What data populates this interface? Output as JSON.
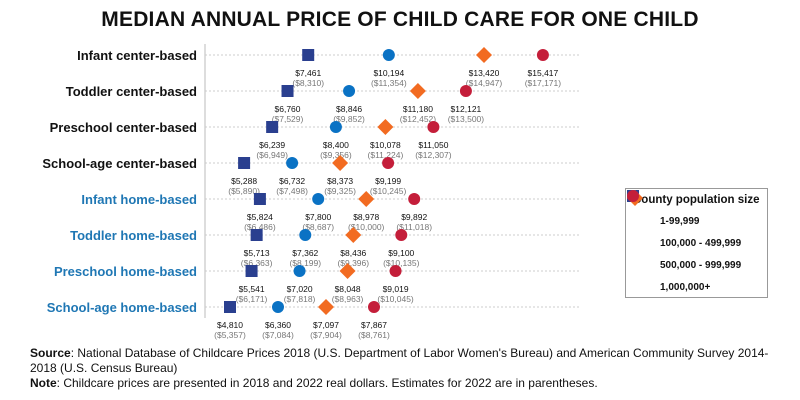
{
  "chart_data": {
    "type": "dot",
    "title": "MEDIAN ANNUAL PRICE OF CHILD CARE FOR ONE CHILD",
    "categories": [
      "Infant center-based",
      "Toddler center-based",
      "Preschool center-based",
      "School-age center-based",
      "Infant home-based",
      "Toddler home-based",
      "Preschool home-based",
      "School-age home-based"
    ],
    "category_colors": [
      "#111111",
      "#111111",
      "#111111",
      "#111111",
      "#1f77b4",
      "#1f77b4",
      "#1f77b4",
      "#1f77b4"
    ],
    "legend_title": "County population size",
    "legend_position": "right",
    "grid": true,
    "series": [
      {
        "name": "1-99,999",
        "color": "#2a3f8f",
        "marker": "square",
        "values": [
          7461,
          6760,
          6239,
          5288,
          5824,
          5713,
          5541,
          4810
        ],
        "labels": [
          "$7,461",
          "$6,760",
          "$6,239",
          "$5,288",
          "$5,824",
          "$5,713",
          "$5,541",
          "$4,810"
        ],
        "labels_2022": [
          "($8,310)",
          "($7,529)",
          "($6,949)",
          "($5,890)",
          "($6,486)",
          "($6,363)",
          "($6,171)",
          "($5,357)"
        ]
      },
      {
        "name": "100,000 - 499,999",
        "color": "#0a72c4",
        "marker": "circle",
        "values": [
          10194,
          8846,
          8400,
          6732,
          7800,
          7362,
          7020,
          6360
        ],
        "labels": [
          "$10,194",
          "$8,846",
          "$8,400",
          "$6,732",
          "$7,800",
          "$7,362",
          "$7,020",
          "$6,360"
        ],
        "labels_2022": [
          "($11,354)",
          "($9,852)",
          "($9,356)",
          "($7,498)",
          "($8,687)",
          "($8,199)",
          "($7,818)",
          "($7,084)"
        ]
      },
      {
        "name": "500,000 - 999,999",
        "color": "#f26b21",
        "marker": "diamond",
        "values": [
          13420,
          11180,
          10078,
          8373,
          8978,
          8436,
          8048,
          7097
        ],
        "labels": [
          "$13,420",
          "$11,180",
          "$10,078",
          "$8,373",
          "$8,978",
          "$8,436",
          "$8,048",
          "$7,097"
        ],
        "labels_2022": [
          "($14,947)",
          "($12,452)",
          "($11,224)",
          "($9,325)",
          "($10,000)",
          "($9,396)",
          "($8,963)",
          "($7,904)"
        ]
      },
      {
        "name": "1,000,000+",
        "color": "#c41e3a",
        "marker": "circle",
        "values": [
          15417,
          12121,
          11050,
          9199,
          9892,
          9100,
          9019,
          7867
        ],
        "labels": [
          "$15,417",
          "$12,121",
          "$11,050",
          "$9,199",
          "$9,892",
          "$9,100",
          "$9,019",
          "$7,867"
        ],
        "labels_2022": [
          "($17,171)",
          "($13,500)",
          "($12,307)",
          "($10,245)",
          "($11,018)",
          "($10,135)",
          "($10,045)",
          "($8,761)"
        ]
      }
    ]
  },
  "notes": {
    "source_label": "Source",
    "source_text": ": National Database of Childcare Prices 2018 (U.S. Department of Labor Women's Bureau) and American Community Survey 2014-2018 (U.S. Census Bureau)",
    "note_label": "Note",
    "note_text": ": Childcare prices are presented in 2018 and 2022 real dollars. Estimates for 2022 are in parentheses."
  }
}
